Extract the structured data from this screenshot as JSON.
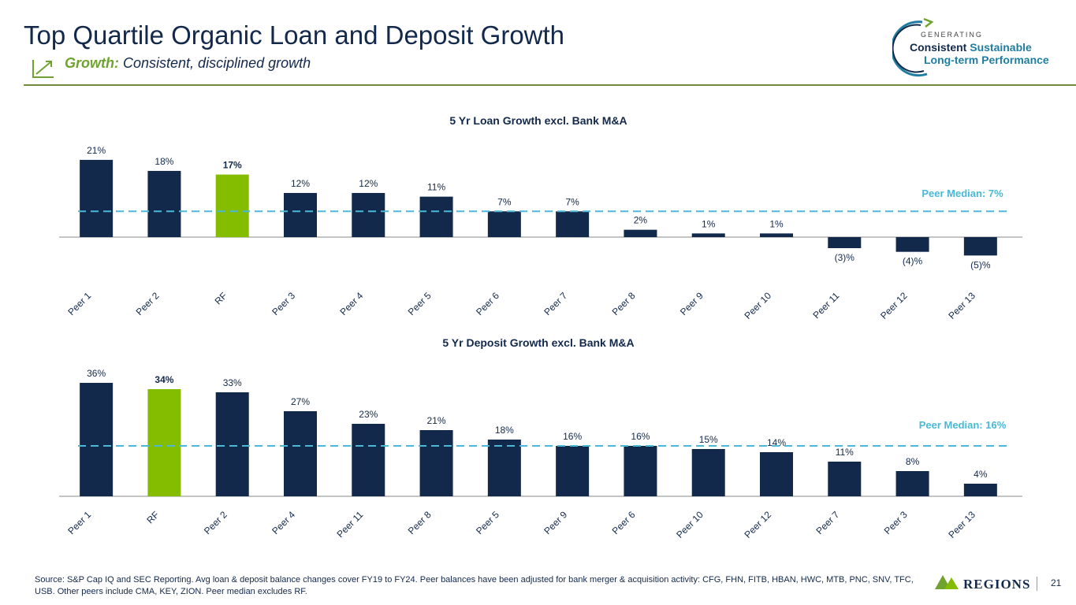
{
  "header": {
    "title": "Top Quartile Organic Loan and Deposit Growth",
    "subtitle_lead": "Growth:",
    "subtitle_rest": "Consistent, disciplined growth"
  },
  "badge": {
    "line1": "GENERATING",
    "line2a": "Consistent",
    "line2b": "Sustainable",
    "line3": "Long-term Performance"
  },
  "colors": {
    "navy": "#13294b",
    "green": "#84bc00",
    "teal": "#4ab8d6"
  },
  "chart_data": [
    {
      "type": "bar",
      "title": "5 Yr Loan Growth excl. Bank M&A",
      "categories": [
        "Peer 1",
        "Peer 2",
        "RF",
        "Peer 3",
        "Peer 4",
        "Peer 5",
        "Peer 6",
        "Peer 7",
        "Peer 8",
        "Peer 9",
        "Peer 10",
        "Peer 11",
        "Peer 12",
        "Peer 13"
      ],
      "values": [
        21,
        18,
        17,
        12,
        12,
        11,
        7,
        7,
        2,
        1,
        1,
        -3,
        -4,
        -5
      ],
      "labels": [
        "21%",
        "18%",
        "17%",
        "12%",
        "12%",
        "11%",
        "7%",
        "7%",
        "2%",
        "1%",
        "1%",
        "(3)%",
        "(4)%",
        "(5)%"
      ],
      "highlight": "RF",
      "median": 7,
      "median_label": "Peer Median: 7%",
      "ylim": [
        -6,
        22
      ]
    },
    {
      "type": "bar",
      "title": "5 Yr Deposit Growth excl. Bank M&A",
      "categories": [
        "Peer 1",
        "RF",
        "Peer 2",
        "Peer 4",
        "Peer 11",
        "Peer 8",
        "Peer 5",
        "Peer 9",
        "Peer 6",
        "Peer 10",
        "Peer 12",
        "Peer 7",
        "Peer 3",
        "Peer 13"
      ],
      "values": [
        36,
        34,
        33,
        27,
        23,
        21,
        18,
        16,
        16,
        15,
        14,
        11,
        8,
        4
      ],
      "labels": [
        "36%",
        "34%",
        "33%",
        "27%",
        "23%",
        "21%",
        "18%",
        "16%",
        "16%",
        "15%",
        "14%",
        "11%",
        "8%",
        "4%"
      ],
      "highlight": "RF",
      "median": 16,
      "median_label": "Peer Median: 16%",
      "ylim": [
        0,
        37
      ]
    }
  ],
  "footer": {
    "source": "Source: S&P Cap IQ and SEC Reporting. Avg loan & deposit balance changes cover FY19 to FY24. Peer balances have been adjusted for bank merger & acquisition activity: CFG, FHN, FITB, HBAN, HWC, MTB, PNC, SNV, TFC, USB.  Other peers include CMA, KEY, ZION. Peer median excludes RF.",
    "logo_text": "REGIONS",
    "page_number": "21"
  }
}
